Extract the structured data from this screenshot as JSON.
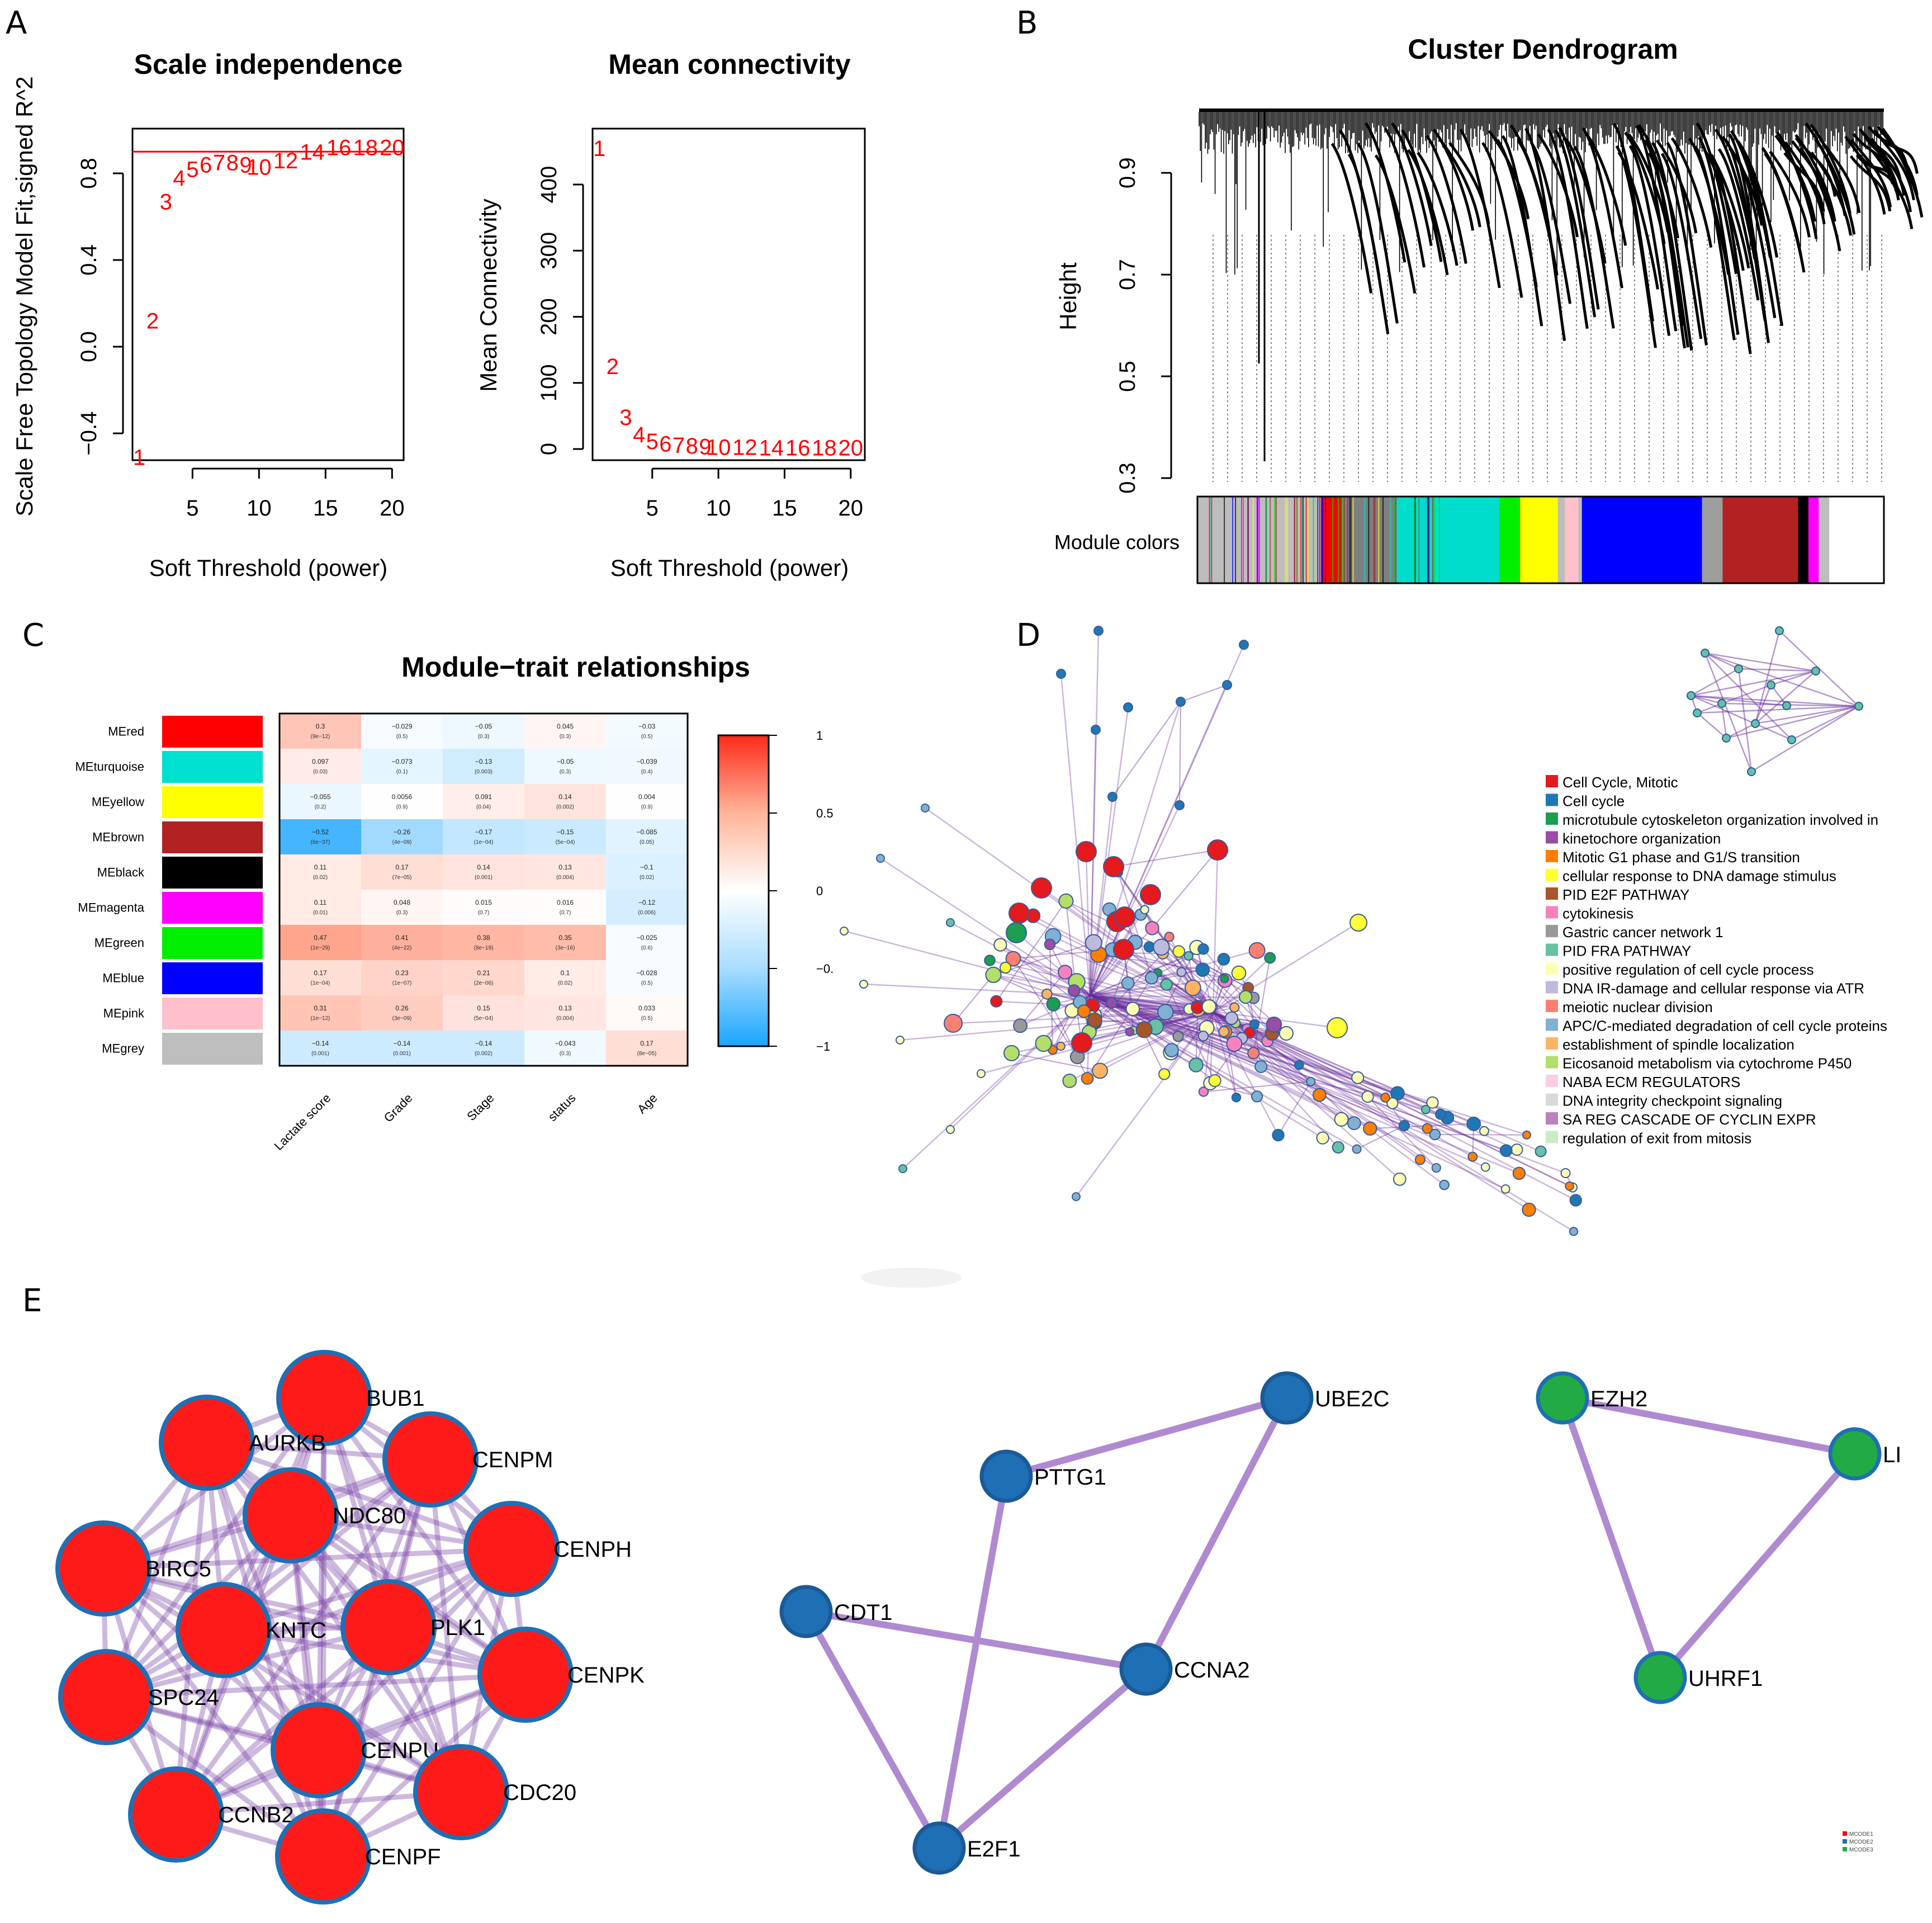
{
  "panels": {
    "A": "A",
    "B": "B",
    "C": "C",
    "D": "D",
    "E": "E"
  },
  "scale_independence": {
    "title": "Scale independence",
    "xlabel": "Soft Threshold (power)",
    "ylabel": "Scale Free Topology Model Fit,signed R^2",
    "xticks": [
      "5",
      "10",
      "15",
      "20"
    ],
    "yticks": [
      "−0.4",
      "0.0",
      "0.4",
      "0.8"
    ],
    "cutoff": 0.9,
    "cutoff_color": "#ff0000",
    "points": [
      {
        "power": 1,
        "label": "1",
        "value": -0.51
      },
      {
        "power": 2,
        "label": "2",
        "value": 0.12
      },
      {
        "power": 3,
        "label": "3",
        "value": 0.67
      },
      {
        "power": 4,
        "label": "4",
        "value": 0.78
      },
      {
        "power": 5,
        "label": "5",
        "value": 0.82
      },
      {
        "power": 6,
        "label": "6",
        "value": 0.84
      },
      {
        "power": 7,
        "label": "7",
        "value": 0.85
      },
      {
        "power": 8,
        "label": "8",
        "value": 0.85
      },
      {
        "power": 9,
        "label": "9",
        "value": 0.84
      },
      {
        "power": 10,
        "label": "10",
        "value": 0.83
      },
      {
        "power": 12,
        "label": "12",
        "value": 0.86
      },
      {
        "power": 14,
        "label": "14",
        "value": 0.9
      },
      {
        "power": 16,
        "label": "16",
        "value": 0.92
      },
      {
        "power": 18,
        "label": "18",
        "value": 0.92
      },
      {
        "power": 20,
        "label": "20",
        "value": 0.92
      }
    ]
  },
  "mean_connectivity": {
    "title": "Mean connectivity",
    "xlabel": "Soft Threshold (power)",
    "ylabel": "Mean Connectivity",
    "xticks": [
      "5",
      "10",
      "15",
      "20"
    ],
    "yticks": [
      "0",
      "100",
      "200",
      "300",
      "400"
    ],
    "points": [
      {
        "power": 1,
        "label": "1",
        "value": 455
      },
      {
        "power": 2,
        "label": "2",
        "value": 125
      },
      {
        "power": 3,
        "label": "3",
        "value": 48
      },
      {
        "power": 4,
        "label": "4",
        "value": 22
      },
      {
        "power": 5,
        "label": "5",
        "value": 12
      },
      {
        "power": 6,
        "label": "6",
        "value": 8
      },
      {
        "power": 7,
        "label": "7",
        "value": 6
      },
      {
        "power": 8,
        "label": "8",
        "value": 5
      },
      {
        "power": 9,
        "label": "9",
        "value": 4
      },
      {
        "power": 10,
        "label": "10",
        "value": 3
      },
      {
        "power": 12,
        "label": "12",
        "value": 3
      },
      {
        "power": 14,
        "label": "14",
        "value": 2
      },
      {
        "power": 16,
        "label": "16",
        "value": 2
      },
      {
        "power": 18,
        "label": "18",
        "value": 2
      },
      {
        "power": 20,
        "label": "20",
        "value": 2
      }
    ]
  },
  "dendrogram": {
    "title": "Cluster Dendrogram",
    "ylabel": "Height",
    "yticks": [
      "0.3",
      "0.5",
      "0.7",
      "0.9"
    ],
    "module_label": "Module colors",
    "module_bands": [
      {
        "color": "#bdbdbd",
        "share": 0.18
      },
      {
        "color": "#ff0000",
        "share": 0.03
      },
      {
        "color": "#7f7f7f",
        "share": 0.08
      },
      {
        "color": "#00ddcc",
        "share": 0.15
      },
      {
        "color": "#00ee00",
        "share": 0.03
      },
      {
        "color": "#ffff00",
        "share": 0.055
      },
      {
        "color": "#bdbdbd",
        "share": 0.01
      },
      {
        "color": "#ffc0cb",
        "share": 0.02
      },
      {
        "color": "#bdbdbd",
        "share": 0.005
      },
      {
        "color": "#0000ff",
        "share": 0.175
      },
      {
        "color": "#9e9e9e",
        "share": 0.03
      },
      {
        "color": "#b22222",
        "share": 0.11
      },
      {
        "color": "#000000",
        "share": 0.015
      },
      {
        "color": "#ff00ff",
        "share": 0.015
      },
      {
        "color": "#bdbdbd",
        "share": 0.015
      }
    ]
  },
  "module_trait": {
    "title": "Module−trait relationships",
    "traits": [
      "Lactate score",
      "Grade",
      "Stage",
      "status",
      "Age"
    ],
    "modules": [
      {
        "name": "MEred",
        "color": "#ff0000"
      },
      {
        "name": "MEturquoise",
        "color": "#00e0d0"
      },
      {
        "name": "MEyellow",
        "color": "#ffff00"
      },
      {
        "name": "MEbrown",
        "color": "#b22222"
      },
      {
        "name": "MEblack",
        "color": "#000000"
      },
      {
        "name": "MEmagenta",
        "color": "#ff00ff"
      },
      {
        "name": "MEgreen",
        "color": "#00ee00"
      },
      {
        "name": "MEblue",
        "color": "#0000ff"
      },
      {
        "name": "MEpink",
        "color": "#ffc0cb"
      },
      {
        "name": "MEgrey",
        "color": "#bebebe"
      }
    ],
    "cor": [
      [
        0.3,
        -0.029,
        -0.05,
        0.045,
        -0.03
      ],
      [
        0.097,
        -0.073,
        -0.13,
        -0.05,
        -0.039
      ],
      [
        -0.055,
        0.0056,
        0.091,
        0.14,
        0.004
      ],
      [
        -0.52,
        -0.26,
        -0.17,
        -0.15,
        -0.085
      ],
      [
        0.11,
        0.17,
        0.14,
        0.13,
        -0.1
      ],
      [
        0.11,
        0.048,
        0.015,
        0.016,
        -0.12
      ],
      [
        0.47,
        0.41,
        0.38,
        0.35,
        -0.025
      ],
      [
        0.17,
        0.23,
        0.21,
        0.1,
        -0.028
      ],
      [
        0.31,
        0.26,
        0.15,
        0.13,
        0.033
      ],
      [
        -0.14,
        -0.14,
        -0.14,
        -0.043,
        0.17
      ]
    ],
    "cor_text": [
      [
        "0.3",
        "−0.029",
        "−0.05",
        "0.045",
        "−0.03"
      ],
      [
        "0.097",
        "−0.073",
        "−0.13",
        "−0.05",
        "−0.039"
      ],
      [
        "−0.055",
        "0.0056",
        "0.091",
        "0.14",
        "0.004"
      ],
      [
        "−0.52",
        "−0.26",
        "−0.17",
        "−0.15",
        "−0.085"
      ],
      [
        "0.11",
        "0.17",
        "0.14",
        "0.13",
        "−0.1"
      ],
      [
        "0.11",
        "0.048",
        "0.015",
        "0.016",
        "−0.12"
      ],
      [
        "0.47",
        "0.41",
        "0.38",
        "0.35",
        "−0.025"
      ],
      [
        "0.17",
        "0.23",
        "0.21",
        "0.1",
        "−0.028"
      ],
      [
        "0.31",
        "0.26",
        "0.15",
        "0.13",
        "0.033"
      ],
      [
        "−0.14",
        "−0.14",
        "−0.14",
        "−0.043",
        "0.17"
      ]
    ],
    "pvals": [
      [
        "(9e−12)",
        "(0.5)",
        "(0.3)",
        "(0.3)",
        "(0.5)"
      ],
      [
        "(0.03)",
        "(0.1)",
        "(0.003)",
        "(0.3)",
        "(0.4)"
      ],
      [
        "(0.2)",
        "(0.9)",
        "(0.04)",
        "(0.002)",
        "(0.9)"
      ],
      [
        "(6e−37)",
        "(4e−09)",
        "(1e−04)",
        "(5e−04)",
        "(0.05)"
      ],
      [
        "(0.02)",
        "(7e−05)",
        "(0.001)",
        "(0.004)",
        "(0.02)"
      ],
      [
        "(0.01)",
        "(0.3)",
        "(0.7)",
        "(0.7)",
        "(0.006)"
      ],
      [
        "(1e−29)",
        "(4e−22)",
        "(8e−19)",
        "(3e−16)",
        "(0.6)"
      ],
      [
        "(1e−04)",
        "(1e−07)",
        "(2e−06)",
        "(0.02)",
        "(0.5)"
      ],
      [
        "(1e−12)",
        "(3e−09)",
        "(5e−04)",
        "(0.004)",
        "(0.5)"
      ],
      [
        "(0.001)",
        "(0.001)",
        "(0.002)",
        "(0.3)",
        "(8e−05)"
      ]
    ],
    "colorbar_ticks": [
      {
        "value": 1,
        "label": "1"
      },
      {
        "value": 0.5,
        "label": "0.5"
      },
      {
        "value": 0,
        "label": "0"
      },
      {
        "value": -0.5,
        "label": "−0."
      },
      {
        "value": -1,
        "label": "−1"
      }
    ]
  },
  "enrichment_legend": [
    {
      "label": "Cell Cycle, Mitotic",
      "color": "#e41a1c"
    },
    {
      "label": "Cell cycle",
      "color": "#1f78b4"
    },
    {
      "label": "microtubule cytoskeleton organization involved in",
      "color": "#1a9e50"
    },
    {
      "label": "kinetochore organization",
      "color": "#984ea3"
    },
    {
      "label": "Mitotic G1 phase and G1/S transition",
      "color": "#ff7f00"
    },
    {
      "label": "cellular response to DNA damage stimulus",
      "color": "#ffff33"
    },
    {
      "label": "PID E2F PATHWAY",
      "color": "#a65628"
    },
    {
      "label": "cytokinesis",
      "color": "#f781bf"
    },
    {
      "label": "Gastric cancer network 1",
      "color": "#999999"
    },
    {
      "label": "PID FRA PATHWAY",
      "color": "#66c2a5"
    },
    {
      "label": "positive regulation of cell cycle process",
      "color": "#ffffb3"
    },
    {
      "label": "DNA IR-damage and cellular response via ATR",
      "color": "#bebada"
    },
    {
      "label": "meiotic nuclear division",
      "color": "#fb8072"
    },
    {
      "label": "APC/C-mediated degradation of cell cycle proteins",
      "color": "#80b1d3"
    },
    {
      "label": "establishment of spindle localization",
      "color": "#fdb462"
    },
    {
      "label": "Eicosanoid metabolism via cytochrome P450",
      "color": "#b3de69"
    },
    {
      "label": "NABA ECM REGULATORS",
      "color": "#fccde5"
    },
    {
      "label": "DNA integrity checkpoint signaling",
      "color": "#d9d9d9"
    },
    {
      "label": "SA REG CASCADE OF CYCLIN EXPR",
      "color": "#bc80bd"
    },
    {
      "label": "regulation of exit from mitosis",
      "color": "#ccebc5"
    }
  ],
  "mcode": {
    "legend": [
      {
        "label": "MCODE1",
        "color": "#ff0000"
      },
      {
        "label": "MCODE2",
        "color": "#1f6fb4"
      },
      {
        "label": "MCODE3",
        "color": "#22aa44"
      }
    ],
    "cluster1": [
      "BUB1",
      "AURKB",
      "CENPM",
      "NDC80",
      "CENPH",
      "BIRC5",
      "KNTC",
      "PLK1",
      "CENPK",
      "SPC24",
      "CENPU",
      "CDC20",
      "CCNB2",
      "CENPF"
    ],
    "cluster2": [
      "UBE2C",
      "PTTG1",
      "CDT1",
      "CCNA2",
      "E2F1"
    ],
    "cluster3": [
      "EZH2",
      "LI",
      "UHRF1"
    ]
  }
}
